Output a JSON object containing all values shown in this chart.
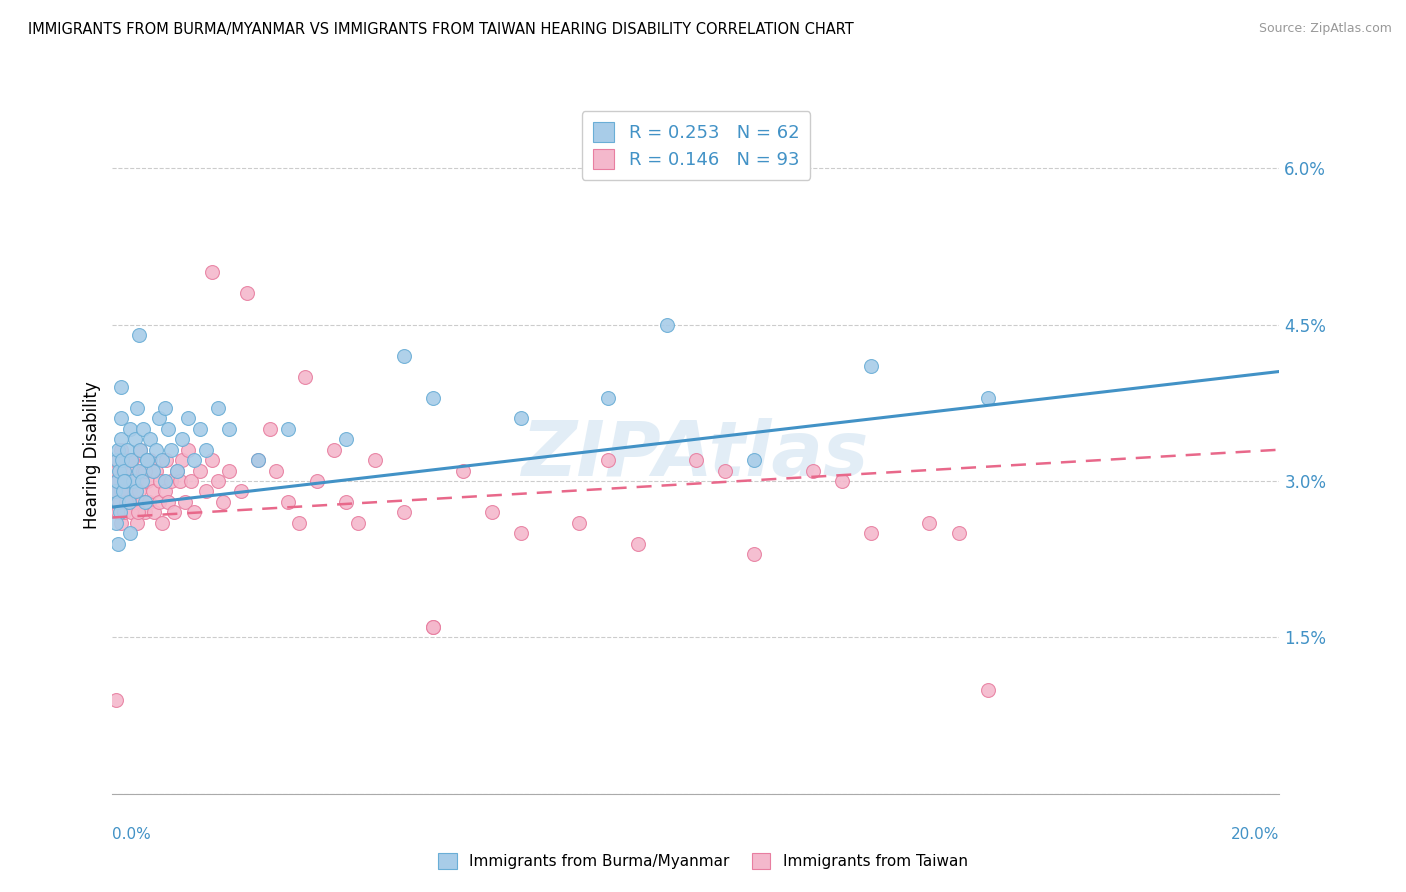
{
  "title": "IMMIGRANTS FROM BURMA/MYANMAR VS IMMIGRANTS FROM TAIWAN HEARING DISABILITY CORRELATION CHART",
  "source": "Source: ZipAtlas.com",
  "ylabel": "Hearing Disability",
  "xlim": [
    0.0,
    20.0
  ],
  "ylim": [
    0.0,
    6.5
  ],
  "yticks": [
    0.0,
    1.5,
    3.0,
    4.5,
    6.0
  ],
  "ytick_labels": [
    "",
    "1.5%",
    "3.0%",
    "4.5%",
    "6.0%"
  ],
  "color_blue": "#a8cce8",
  "color_pink": "#f4b8cc",
  "edge_blue": "#6aaed6",
  "edge_pink": "#e87ea0",
  "line_blue": "#4292c6",
  "line_pink": "#e8688a",
  "R_blue": 0.253,
  "N_blue": 62,
  "R_pink": 0.146,
  "N_pink": 93,
  "legend_label_blue": "Immigrants from Burma/Myanmar",
  "legend_label_pink": "Immigrants from Taiwan",
  "watermark": "ZIPAtlas",
  "blue_line_x0": 0.0,
  "blue_line_y0": 2.75,
  "blue_line_x1": 20.0,
  "blue_line_y1": 4.05,
  "pink_line_x0": 0.0,
  "pink_line_y0": 2.65,
  "pink_line_x1": 20.0,
  "pink_line_y1": 3.3,
  "blue_scatter_x": [
    0.05,
    0.07,
    0.08,
    0.1,
    0.1,
    0.12,
    0.13,
    0.15,
    0.15,
    0.17,
    0.18,
    0.2,
    0.22,
    0.25,
    0.28,
    0.3,
    0.32,
    0.35,
    0.38,
    0.4,
    0.42,
    0.45,
    0.48,
    0.5,
    0.52,
    0.55,
    0.6,
    0.65,
    0.7,
    0.75,
    0.8,
    0.85,
    0.9,
    0.95,
    1.0,
    1.1,
    1.2,
    1.3,
    1.4,
    1.5,
    1.6,
    1.8,
    2.0,
    2.5,
    3.0,
    4.0,
    5.0,
    5.5,
    7.0,
    8.5,
    9.5,
    11.0,
    13.0,
    15.0,
    0.06,
    0.09,
    0.14,
    0.2,
    0.3,
    0.45,
    0.6,
    0.9
  ],
  "blue_scatter_y": [
    2.9,
    3.2,
    3.0,
    2.8,
    3.3,
    3.1,
    2.7,
    3.4,
    3.6,
    3.2,
    2.9,
    3.1,
    3.0,
    3.3,
    2.8,
    3.5,
    3.2,
    3.0,
    3.4,
    2.9,
    3.7,
    3.1,
    3.3,
    3.0,
    3.5,
    2.8,
    3.2,
    3.4,
    3.1,
    3.3,
    3.6,
    3.2,
    3.0,
    3.5,
    3.3,
    3.1,
    3.4,
    3.6,
    3.2,
    3.5,
    3.3,
    3.7,
    3.5,
    3.2,
    3.5,
    3.4,
    4.2,
    3.8,
    3.6,
    3.8,
    4.5,
    3.2,
    4.1,
    3.8,
    2.6,
    2.4,
    3.9,
    3.0,
    2.5,
    4.4,
    3.2,
    3.7
  ],
  "pink_scatter_x": [
    0.03,
    0.05,
    0.07,
    0.08,
    0.1,
    0.1,
    0.12,
    0.13,
    0.15,
    0.15,
    0.17,
    0.18,
    0.2,
    0.22,
    0.25,
    0.27,
    0.3,
    0.32,
    0.35,
    0.38,
    0.4,
    0.42,
    0.45,
    0.48,
    0.5,
    0.52,
    0.55,
    0.6,
    0.62,
    0.65,
    0.7,
    0.72,
    0.75,
    0.8,
    0.82,
    0.85,
    0.9,
    0.92,
    0.95,
    1.0,
    1.05,
    1.1,
    1.15,
    1.2,
    1.25,
    1.3,
    1.35,
    1.4,
    1.5,
    1.6,
    1.7,
    1.8,
    1.9,
    2.0,
    2.2,
    2.5,
    2.8,
    3.0,
    3.5,
    4.0,
    4.5,
    5.0,
    5.5,
    6.0,
    7.0,
    8.0,
    9.0,
    10.0,
    11.0,
    12.0,
    13.0,
    14.0,
    15.0,
    1.7,
    2.3,
    2.7,
    3.3,
    3.8,
    4.2,
    5.5,
    6.5,
    8.5,
    10.5,
    12.5,
    14.5,
    0.06,
    0.09,
    0.14,
    0.23,
    0.33,
    0.43,
    0.55,
    3.2
  ],
  "pink_scatter_y": [
    2.9,
    3.0,
    2.8,
    3.1,
    2.7,
    3.2,
    3.0,
    2.8,
    3.3,
    2.6,
    2.9,
    3.1,
    2.7,
    3.0,
    2.8,
    3.2,
    2.9,
    2.7,
    3.1,
    2.8,
    3.0,
    2.6,
    2.9,
    3.3,
    2.8,
    3.1,
    2.7,
    3.0,
    2.8,
    3.2,
    2.9,
    2.7,
    3.1,
    2.8,
    3.0,
    2.6,
    2.9,
    3.2,
    2.8,
    3.0,
    2.7,
    3.1,
    3.0,
    3.2,
    2.8,
    3.3,
    3.0,
    2.7,
    3.1,
    2.9,
    3.2,
    3.0,
    2.8,
    3.1,
    2.9,
    3.2,
    3.1,
    2.8,
    3.0,
    2.8,
    3.2,
    2.7,
    1.6,
    3.1,
    2.5,
    2.6,
    2.4,
    3.2,
    2.3,
    3.1,
    2.5,
    2.6,
    1.0,
    5.0,
    4.8,
    3.5,
    4.0,
    3.3,
    2.6,
    1.6,
    2.7,
    3.2,
    3.1,
    3.0,
    2.5,
    0.9,
    3.0,
    2.9,
    2.8,
    3.2,
    2.7,
    3.1,
    2.6
  ]
}
